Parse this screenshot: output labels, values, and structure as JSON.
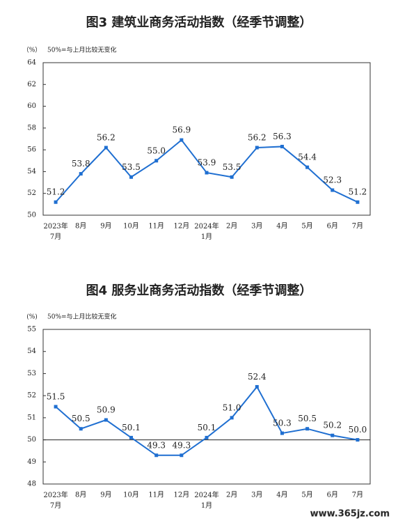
{
  "chart_data": [
    {
      "type": "line",
      "title": "图3 建筑业商务活动指数（经季节调整）",
      "y_label": "（%）",
      "annotation": "50%=与上月比较无变化",
      "categories": [
        "2023年\n7月",
        "8月",
        "9月",
        "10月",
        "11月",
        "12月",
        "2024年\n1月",
        "2月",
        "3月",
        "4月",
        "5月",
        "6月",
        "7月"
      ],
      "values": [
        51.2,
        53.8,
        56.2,
        53.5,
        55.0,
        56.9,
        53.9,
        53.5,
        56.2,
        56.3,
        54.4,
        52.3,
        51.2
      ],
      "value_labels": [
        "51.2",
        "53.8",
        "56.2",
        "53.5",
        "55.0",
        "56.9",
        "53.9",
        "53.5",
        "56.2",
        "56.3",
        "54.4",
        "52.3",
        "51.2"
      ],
      "color": "#1f6fd1",
      "ylim": [
        50,
        64
      ],
      "yticks": [
        50,
        52,
        54,
        56,
        58,
        60,
        62,
        64
      ]
    },
    {
      "type": "line",
      "title": "图4 服务业商务活动指数（经季节调整）",
      "y_label": "(%)",
      "annotation": "50%=与上月比较无变化",
      "categories": [
        "2023年\n7月",
        "8月",
        "9月",
        "10月",
        "11月",
        "12月",
        "2024年\n1月",
        "2月",
        "3月",
        "4月",
        "5月",
        "6月",
        "7月"
      ],
      "values": [
        51.5,
        50.5,
        50.9,
        50.1,
        49.3,
        49.3,
        50.1,
        51.0,
        52.4,
        50.3,
        50.5,
        50.2,
        50.0
      ],
      "value_labels": [
        "51.5",
        "50.5",
        "50.9",
        "50.1",
        "49.3",
        "49.3",
        "50.1",
        "51.0",
        "52.4",
        "50.3",
        "50.5",
        "50.2",
        "50.0"
      ],
      "color": "#1f6fd1",
      "ylim": [
        48,
        55
      ],
      "yticks": [
        48,
        49,
        50,
        51,
        52,
        53,
        54,
        55
      ],
      "reference_line": 50
    }
  ],
  "watermark": "www.365jz.com"
}
